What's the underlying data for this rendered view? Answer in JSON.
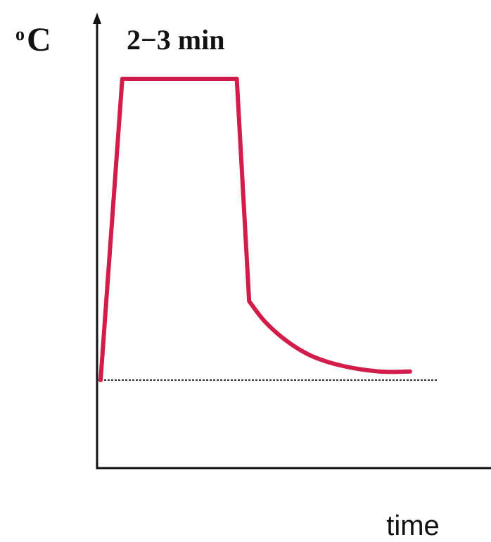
{
  "chart_data": {
    "type": "line",
    "title": "2−3 min",
    "xlabel": "time",
    "ylabel_unit": "C",
    "ylabel_degree": "o",
    "grid": false,
    "legend": "none",
    "baseline": 0,
    "xlim": [
      0,
      100
    ],
    "ylim": [
      -1.5,
      5
    ],
    "series": [
      {
        "color": "#d21c4a",
        "x": [
          0,
          7,
          44,
          48,
          53,
          60,
          68,
          78,
          90,
          100
        ],
        "y": [
          0,
          4.2,
          4.2,
          1.1,
          0.82,
          0.55,
          0.34,
          0.2,
          0.12,
          0.12
        ]
      }
    ],
    "baseline_color": "#333333",
    "axis_color": "#111111"
  }
}
